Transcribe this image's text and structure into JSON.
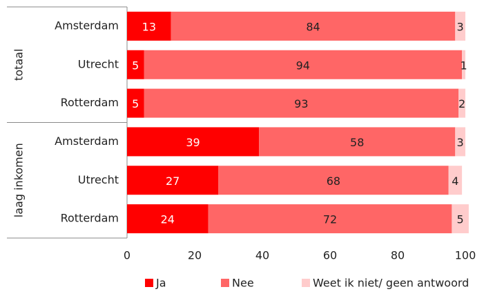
{
  "chart_data": {
    "type": "stacked-barh",
    "groups": [
      {
        "name": "totaal",
        "categories": [
          "Amsterdam",
          "Utrecht",
          "Rotterdam"
        ]
      },
      {
        "name": "laag inkomen",
        "categories": [
          "Amsterdam",
          "Utrecht",
          "Rotterdam"
        ]
      }
    ],
    "series": [
      {
        "name": "Ja",
        "color": "#ff0000",
        "values": [
          13,
          5,
          5,
          39,
          27,
          24
        ]
      },
      {
        "name": "Nee",
        "color": "#ff6666",
        "values": [
          84,
          94,
          93,
          58,
          68,
          72
        ]
      },
      {
        "name": "Weet ik niet/ geen antwoord",
        "color": "#ffcccc",
        "values": [
          3,
          1,
          2,
          3,
          4,
          5
        ]
      }
    ],
    "xlim": [
      0,
      100
    ],
    "xticks": [
      0,
      20,
      40,
      60,
      80,
      100
    ],
    "legend": "bottom"
  }
}
